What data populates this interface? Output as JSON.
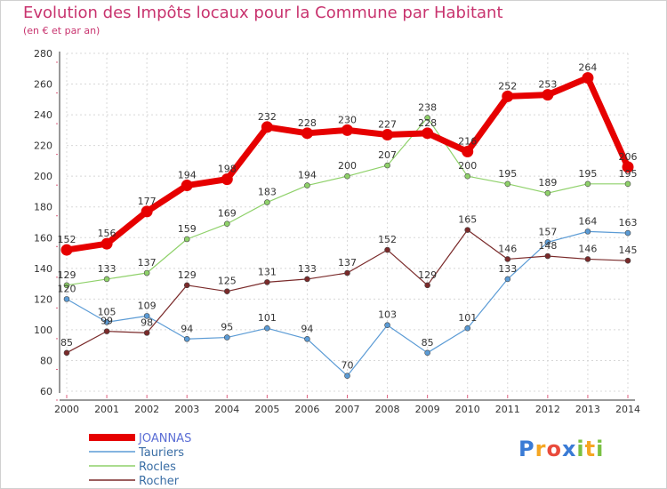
{
  "chart_data": {
    "type": "line",
    "title": "Evolution des Impôts locaux pour la Commune par Habitant",
    "subtitle": "(en € et par an)",
    "x": [
      "2000",
      "2001",
      "2002",
      "2003",
      "2004",
      "2005",
      "2006",
      "2007",
      "2008",
      "2009",
      "2010",
      "2011",
      "2012",
      "2013",
      "2014"
    ],
    "ylim": [
      60,
      280
    ],
    "yticks": [
      60,
      80,
      100,
      120,
      140,
      160,
      180,
      200,
      220,
      240,
      260,
      280
    ],
    "grid": true,
    "legend_position": "bottom-left",
    "series": [
      {
        "name": "JOANNAS",
        "color": "#e60000",
        "values": [
          152,
          156,
          177,
          194,
          198,
          232,
          228,
          230,
          227,
          228,
          216,
          252,
          253,
          264,
          206
        ]
      },
      {
        "name": "Tauriers",
        "color": "#5b9bd5",
        "values": [
          120,
          105,
          109,
          94,
          95,
          101,
          94,
          70,
          103,
          85,
          101,
          133,
          157,
          164,
          163
        ]
      },
      {
        "name": "Rocles",
        "color": "#8fd16a",
        "values": [
          129,
          133,
          137,
          159,
          169,
          183,
          194,
          200,
          207,
          238,
          200,
          195,
          189,
          195,
          195
        ]
      },
      {
        "name": "Rocher",
        "color": "#7a2a2a",
        "values": [
          85,
          99,
          98,
          129,
          125,
          131,
          133,
          137,
          152,
          129,
          165,
          146,
          148,
          146,
          145
        ]
      }
    ]
  },
  "logo": {
    "letters": [
      {
        "ch": "P",
        "color": "#3a7bd5"
      },
      {
        "ch": "r",
        "color": "#f5a623"
      },
      {
        "ch": "o",
        "color": "#e94b3c"
      },
      {
        "ch": "x",
        "color": "#3a7bd5"
      },
      {
        "ch": "i",
        "color": "#7ac143"
      },
      {
        "ch": "t",
        "color": "#f5a623"
      },
      {
        "ch": "i",
        "color": "#7ac143"
      }
    ]
  }
}
